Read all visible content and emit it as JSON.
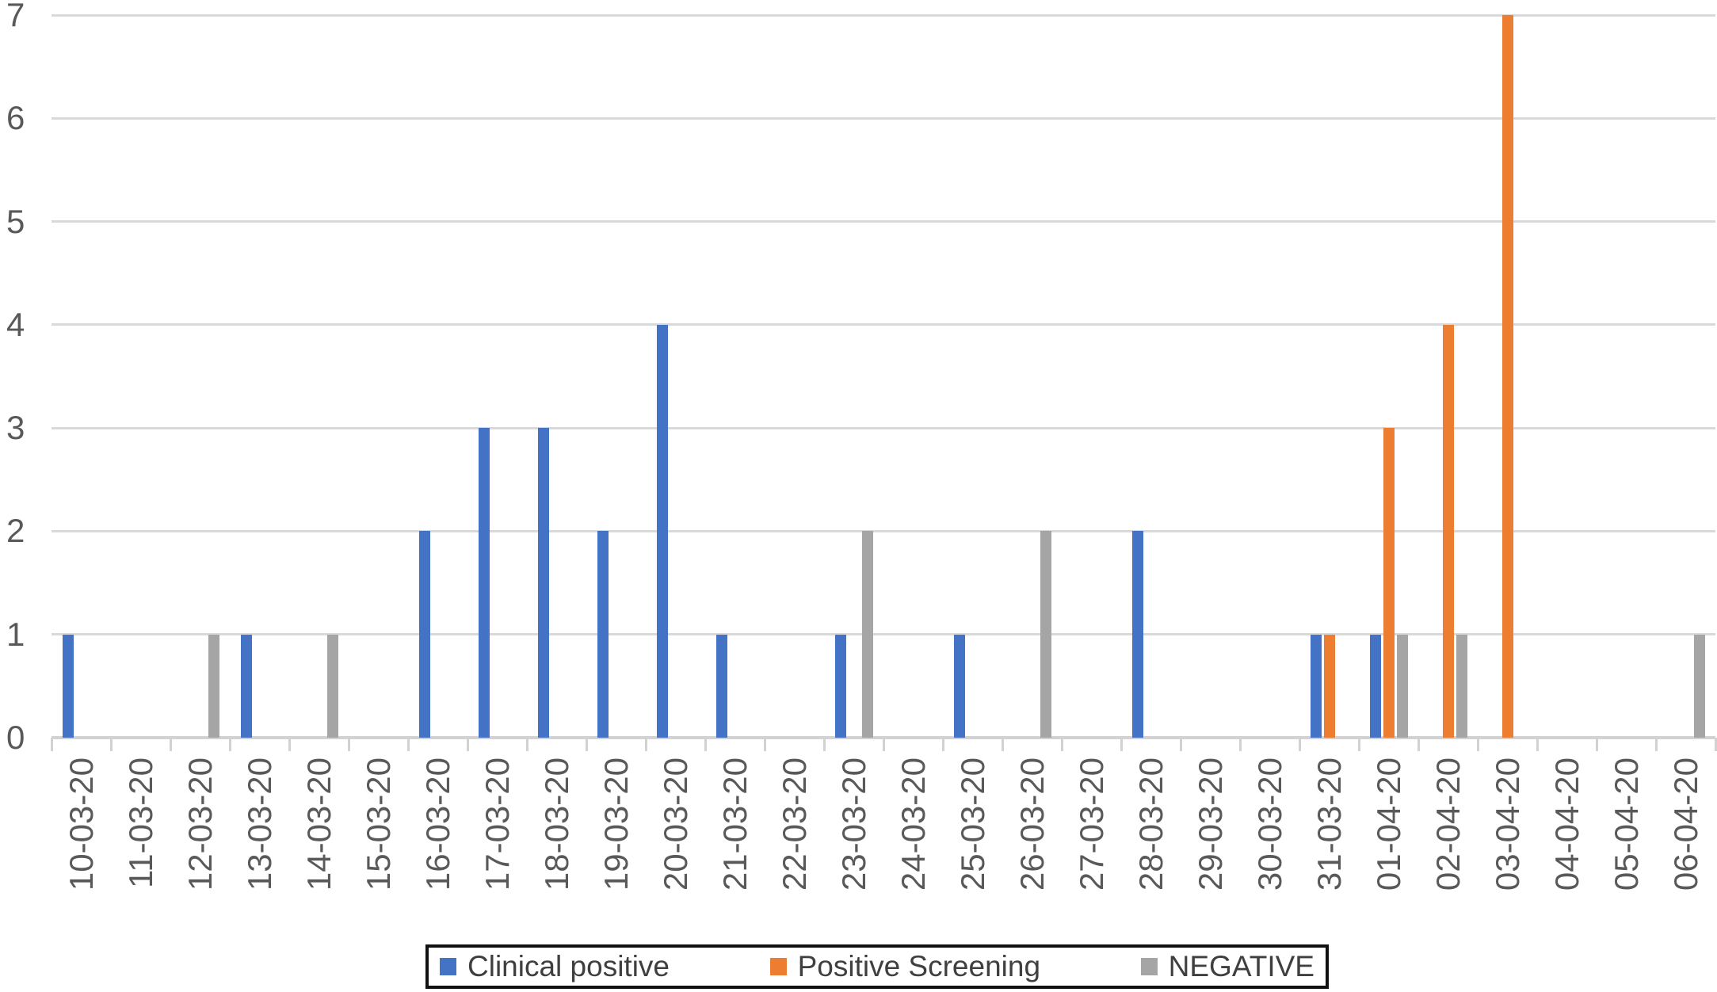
{
  "chart_data": {
    "type": "bar",
    "title": "",
    "xlabel": "",
    "ylabel": "",
    "categories": [
      "10-03-20",
      "11-03-20",
      "12-03-20",
      "13-03-20",
      "14-03-20",
      "15-03-20",
      "16-03-20",
      "17-03-20",
      "18-03-20",
      "19-03-20",
      "20-03-20",
      "21-03-20",
      "22-03-20",
      "23-03-20",
      "24-03-20",
      "25-03-20",
      "26-03-20",
      "27-03-20",
      "28-03-20",
      "29-03-20",
      "30-03-20",
      "31-03-20",
      "01-04-20",
      "02-04-20",
      "03-04-20",
      "04-04-20",
      "05-04-20",
      "06-04-20"
    ],
    "series": [
      {
        "name": "Clinical positive",
        "color": "#4472C4",
        "values": [
          1,
          0,
          0,
          1,
          0,
          0,
          2,
          3,
          3,
          2,
          4,
          1,
          0,
          1,
          0,
          1,
          0,
          0,
          2,
          0,
          0,
          1,
          1,
          0,
          0,
          0,
          0,
          0
        ]
      },
      {
        "name": "Positive Screening",
        "color": "#ED7D31",
        "values": [
          0,
          0,
          0,
          0,
          0,
          0,
          0,
          0,
          0,
          0,
          0,
          0,
          0,
          0,
          0,
          0,
          0,
          0,
          0,
          0,
          0,
          1,
          3,
          4,
          7,
          0,
          0,
          0
        ]
      },
      {
        "name": "NEGATIVE",
        "color": "#A5A5A5",
        "values": [
          0,
          0,
          1,
          0,
          1,
          0,
          0,
          0,
          0,
          0,
          0,
          0,
          0,
          2,
          0,
          0,
          2,
          0,
          0,
          0,
          0,
          0,
          1,
          1,
          0,
          0,
          0,
          1
        ]
      }
    ],
    "y_ticks": [
      "0",
      "1",
      "2",
      "3",
      "4",
      "5",
      "6",
      "7"
    ],
    "ylim": [
      0,
      7
    ],
    "grid": true,
    "legend_position": "bottom"
  }
}
